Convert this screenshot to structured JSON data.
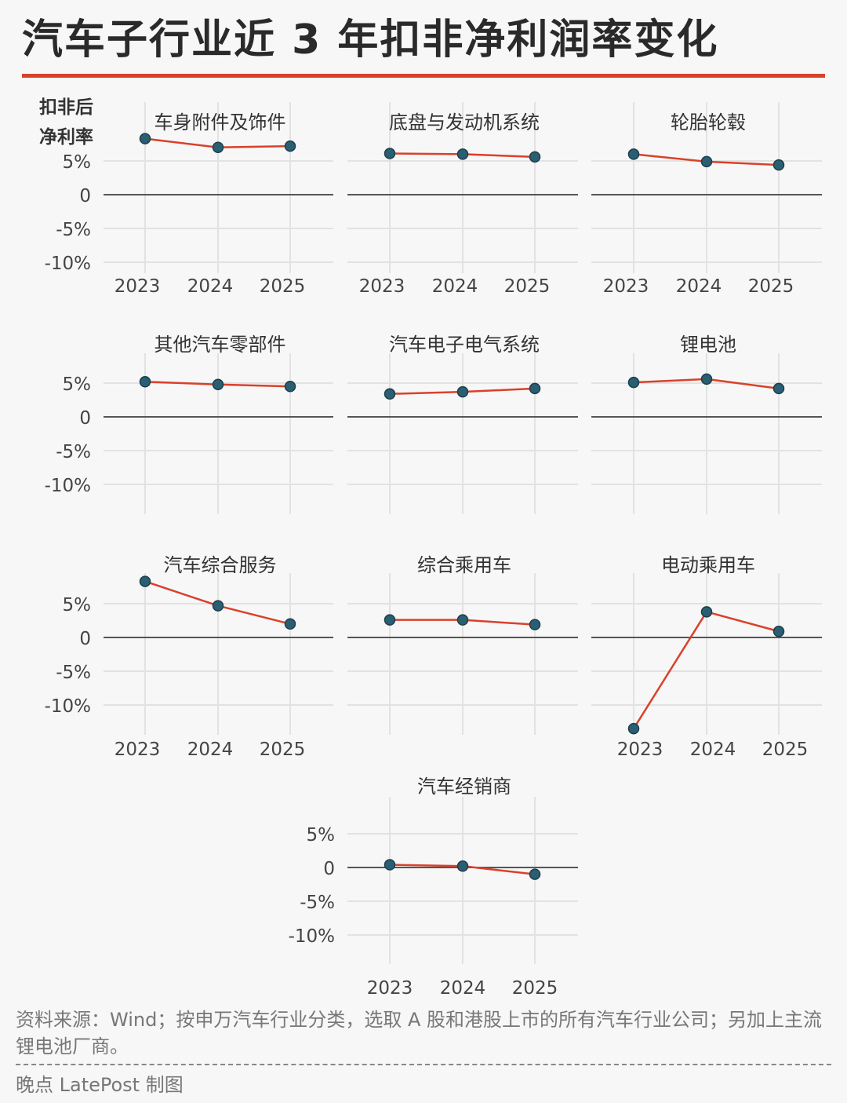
{
  "title": "汽车子行业近 3 年扣非净利润率变化",
  "ylabel_line1": "扣非后",
  "ylabel_line2": "净利率",
  "source": "资料来源：Wind；按申万汽车行业分类，选取 A 股和港股上市的所有汽车行业公司；另加上主流锂电池厂商。",
  "credit": "晚点 LatePost 制图",
  "watermark": "晚点 LATE POST",
  "colors": {
    "line": "#d9412b",
    "point": "#2a5f73",
    "title_rule": "#d9412b"
  },
  "chart_data": [
    {
      "type": "line",
      "title": "车身附件及饰件",
      "x": [
        "2023",
        "2024",
        "2025"
      ],
      "values": [
        8.3,
        7.0,
        7.2
      ],
      "ylim": [
        -12,
        8
      ],
      "yticks": [
        "5%",
        "0",
        "-5%",
        "-10%"
      ],
      "show_yticks": true,
      "show_xticks": true
    },
    {
      "type": "line",
      "title": "底盘与发动机系统",
      "x": [
        "2023",
        "2024",
        "2025"
      ],
      "values": [
        6.1,
        6.0,
        5.6
      ],
      "ylim": [
        -12,
        8
      ],
      "yticks": [],
      "show_yticks": false,
      "show_xticks": true
    },
    {
      "type": "line",
      "title": "轮胎轮毂",
      "x": [
        "2023",
        "2024",
        "2025"
      ],
      "values": [
        6.0,
        4.9,
        4.4
      ],
      "ylim": [
        -12,
        8
      ],
      "yticks": [],
      "show_yticks": false,
      "show_xticks": true
    },
    {
      "type": "line",
      "title": "其他汽车零部件",
      "x": [
        "2023",
        "2024",
        "2025"
      ],
      "values": [
        5.2,
        4.8,
        4.5
      ],
      "ylim": [
        -12,
        8
      ],
      "yticks": [
        "5%",
        "0",
        "-5%",
        "-10%"
      ],
      "show_yticks": true,
      "show_xticks": false
    },
    {
      "type": "line",
      "title": "汽车电子电气系统",
      "x": [
        "2023",
        "2024",
        "2025"
      ],
      "values": [
        3.4,
        3.7,
        4.2
      ],
      "ylim": [
        -12,
        8
      ],
      "yticks": [],
      "show_yticks": false,
      "show_xticks": false
    },
    {
      "type": "line",
      "title": "锂电池",
      "x": [
        "2023",
        "2024",
        "2025"
      ],
      "values": [
        5.1,
        5.6,
        4.2
      ],
      "ylim": [
        -12,
        8
      ],
      "yticks": [],
      "show_yticks": false,
      "show_xticks": false
    },
    {
      "type": "line",
      "title": "汽车综合服务",
      "x": [
        "2023",
        "2024",
        "2025"
      ],
      "values": [
        8.3,
        4.7,
        2.0
      ],
      "ylim": [
        -12,
        8
      ],
      "yticks": [
        "5%",
        "0",
        "-5%",
        "-10%"
      ],
      "show_yticks": true,
      "show_xticks": true
    },
    {
      "type": "line",
      "title": "综合乘用车",
      "x": [
        "2023",
        "2024",
        "2025"
      ],
      "values": [
        2.6,
        2.6,
        1.9
      ],
      "ylim": [
        -12,
        8
      ],
      "yticks": [],
      "show_yticks": false,
      "show_xticks": false
    },
    {
      "type": "line",
      "title": "电动乘用车",
      "x": [
        "2023",
        "2024",
        "2025"
      ],
      "values": [
        -13.5,
        3.8,
        0.9
      ],
      "ylim": [
        -14,
        8
      ],
      "yticks": [],
      "show_yticks": false,
      "show_xticks": true
    },
    {
      "type": "line",
      "title": "汽车经销商",
      "x": [
        "2023",
        "2024",
        "2025"
      ],
      "values": [
        0.4,
        0.2,
        -1.0
      ],
      "ylim": [
        -12,
        8
      ],
      "yticks": [
        "5%",
        "0",
        "-5%",
        "-10%"
      ],
      "show_yticks": true,
      "show_xticks": true
    }
  ]
}
